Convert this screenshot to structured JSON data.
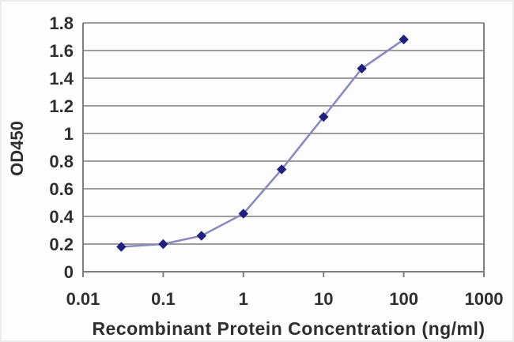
{
  "chart_data": {
    "type": "line",
    "title": "",
    "xlabel": "Recombinant Protein Concentration (ng/ml)",
    "ylabel": "OD450",
    "x_scale": "log",
    "xlim": [
      0.01,
      1000
    ],
    "ylim": [
      0,
      1.8
    ],
    "x": [
      0.03,
      0.1,
      0.3,
      1,
      3,
      10,
      30,
      100
    ],
    "y": [
      0.18,
      0.2,
      0.26,
      0.42,
      0.74,
      1.12,
      1.47,
      1.68
    ],
    "x_ticks": [
      0.01,
      0.1,
      1,
      10,
      100,
      1000
    ],
    "x_tick_labels": [
      "0.01",
      "0.1",
      "1",
      "10",
      "100",
      "1000"
    ],
    "y_ticks": [
      0,
      0.2,
      0.4,
      0.6,
      0.8,
      1,
      1.2,
      1.4,
      1.6,
      1.8
    ],
    "y_tick_labels": [
      "0",
      "0.2",
      "0.4",
      "0.6",
      "0.8",
      "1",
      "1.2",
      "1.4",
      "1.6",
      "1.8"
    ],
    "grid": "horizontal",
    "legend": "none",
    "marker_shape": "diamond",
    "colors": {
      "line": "#8a8abc",
      "marker": "#21217d",
      "grid": "#8f8f8f",
      "axis": "#7f7f7f",
      "text": "#2e2e2e"
    }
  }
}
